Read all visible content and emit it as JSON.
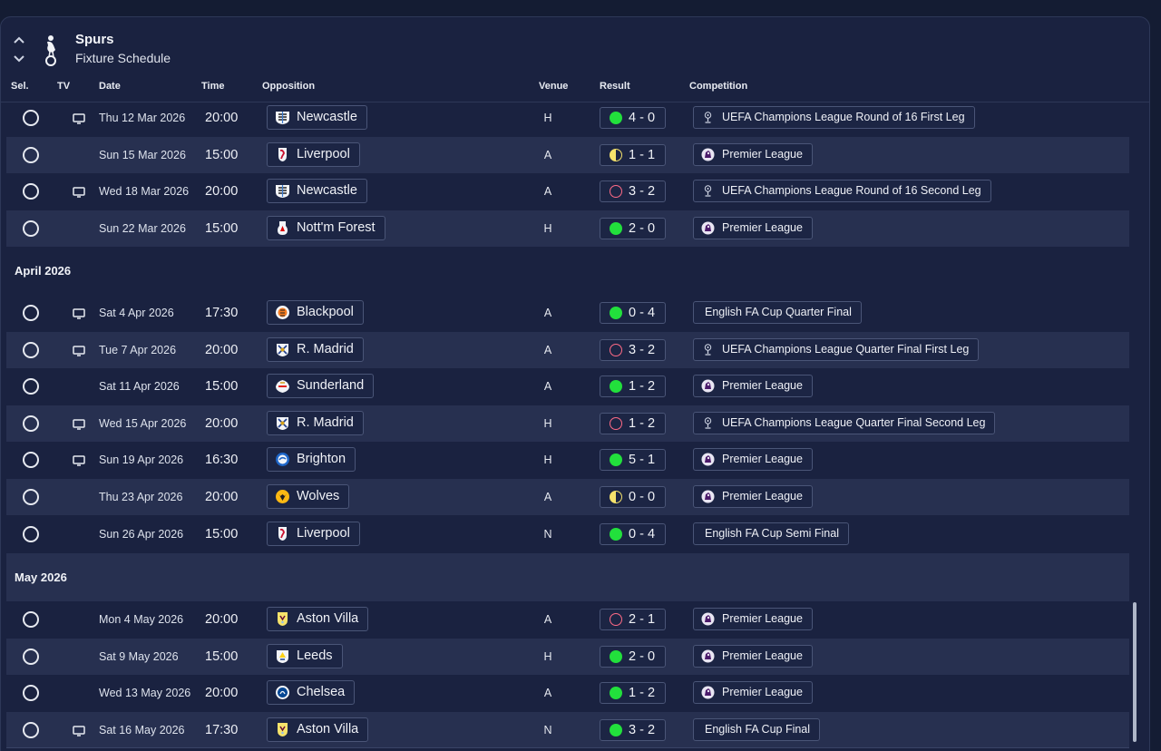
{
  "header": {
    "title": "Spurs",
    "subtitle": "Fixture Schedule",
    "collapse_icon": "chevron-up-icon",
    "expand_icon": "chevron-down-icon",
    "crest_icon": "cockerel-crest-icon"
  },
  "columns": {
    "sel": "Sel.",
    "tv": "TV",
    "date": "Date",
    "time": "Time",
    "opposition": "Opposition",
    "venue": "Venue",
    "result": "Result",
    "competition": "Competition"
  },
  "colors": {
    "win": "#22e03c",
    "loss": "#ff6b86",
    "draw": "#f5e26b",
    "background": "#1a2240",
    "row_shade": "#273050"
  },
  "fixtures_march": [
    {
      "tv": true,
      "date": "Thu 12 Mar 2026",
      "time": "20:00",
      "opp": "Newcastle",
      "crest": "newcastle-crest-icon",
      "venue": "H",
      "outcome": "win",
      "score": "4 - 0",
      "comp": "UEFA Champions League Round of 16  First Leg",
      "comp_icon": "ucl-icon"
    },
    {
      "tv": false,
      "date": "Sun 15 Mar 2026",
      "time": "15:00",
      "opp": "Liverpool",
      "crest": "liverpool-crest-icon",
      "venue": "A",
      "outcome": "draw",
      "score": "1 - 1",
      "comp": "Premier League",
      "comp_icon": "premier-league-icon"
    },
    {
      "tv": true,
      "date": "Wed 18 Mar 2026",
      "time": "20:00",
      "opp": "Newcastle",
      "crest": "newcastle-crest-icon",
      "venue": "A",
      "outcome": "loss",
      "score": "3 - 2",
      "comp": "UEFA Champions League Round of 16  Second Leg",
      "comp_icon": "ucl-icon"
    },
    {
      "tv": false,
      "date": "Sun 22 Mar 2026",
      "time": "15:00",
      "opp": "Nott'm Forest",
      "crest": "forest-crest-icon",
      "venue": "H",
      "outcome": "win",
      "score": "2 - 0",
      "comp": "Premier League",
      "comp_icon": "premier-league-icon"
    }
  ],
  "month_april": "April 2026",
  "fixtures_april": [
    {
      "tv": true,
      "date": "Sat 4 Apr 2026",
      "time": "17:30",
      "opp": "Blackpool",
      "crest": "blackpool-crest-icon",
      "venue": "A",
      "outcome": "win",
      "score": "0 - 4",
      "comp": "English FA Cup Quarter Final",
      "comp_icon": ""
    },
    {
      "tv": true,
      "date": "Tue 7 Apr 2026",
      "time": "20:00",
      "opp": "R. Madrid",
      "crest": "real-madrid-crest-icon",
      "venue": "A",
      "outcome": "loss",
      "score": "3 - 2",
      "comp": "UEFA Champions League Quarter Final First Leg",
      "comp_icon": "ucl-icon"
    },
    {
      "tv": false,
      "date": "Sat 11 Apr 2026",
      "time": "15:00",
      "opp": "Sunderland",
      "crest": "sunderland-crest-icon",
      "venue": "A",
      "outcome": "win",
      "score": "1 - 2",
      "comp": "Premier League",
      "comp_icon": "premier-league-icon"
    },
    {
      "tv": true,
      "date": "Wed 15 Apr 2026",
      "time": "20:00",
      "opp": "R. Madrid",
      "crest": "real-madrid-crest-icon",
      "venue": "H",
      "outcome": "loss",
      "score": "1 - 2",
      "comp": "UEFA Champions League Quarter Final Second Leg",
      "comp_icon": "ucl-icon"
    },
    {
      "tv": true,
      "date": "Sun 19 Apr 2026",
      "time": "16:30",
      "opp": "Brighton",
      "crest": "brighton-crest-icon",
      "venue": "H",
      "outcome": "win",
      "score": "5 - 1",
      "comp": "Premier League",
      "comp_icon": "premier-league-icon"
    },
    {
      "tv": false,
      "date": "Thu 23 Apr 2026",
      "time": "20:00",
      "opp": "Wolves",
      "crest": "wolves-crest-icon",
      "venue": "A",
      "outcome": "draw",
      "score": "0 - 0",
      "comp": "Premier League",
      "comp_icon": "premier-league-icon"
    },
    {
      "tv": false,
      "date": "Sun 26 Apr 2026",
      "time": "15:00",
      "opp": "Liverpool",
      "crest": "liverpool-crest-icon",
      "venue": "N",
      "outcome": "win",
      "score": "0 - 4",
      "comp": "English FA Cup Semi Final",
      "comp_icon": ""
    }
  ],
  "month_may": "May 2026",
  "fixtures_may": [
    {
      "tv": false,
      "date": "Mon 4 May 2026",
      "time": "20:00",
      "opp": "Aston Villa",
      "crest": "aston-villa-crest-icon",
      "venue": "A",
      "outcome": "loss",
      "score": "2 - 1",
      "comp": "Premier League",
      "comp_icon": "premier-league-icon"
    },
    {
      "tv": false,
      "date": "Sat 9 May 2026",
      "time": "15:00",
      "opp": "Leeds",
      "crest": "leeds-crest-icon",
      "venue": "H",
      "outcome": "win",
      "score": "2 - 0",
      "comp": "Premier League",
      "comp_icon": "premier-league-icon"
    },
    {
      "tv": false,
      "date": "Wed 13 May 2026",
      "time": "20:00",
      "opp": "Chelsea",
      "crest": "chelsea-crest-icon",
      "venue": "A",
      "outcome": "win",
      "score": "1 - 2",
      "comp": "Premier League",
      "comp_icon": "premier-league-icon"
    },
    {
      "tv": true,
      "date": "Sat 16 May 2026",
      "time": "17:30",
      "opp": "Aston Villa",
      "crest": "aston-villa-crest-icon",
      "venue": "N",
      "outcome": "win",
      "score": "3 - 2",
      "comp": "English FA Cup Final",
      "comp_icon": ""
    }
  ]
}
